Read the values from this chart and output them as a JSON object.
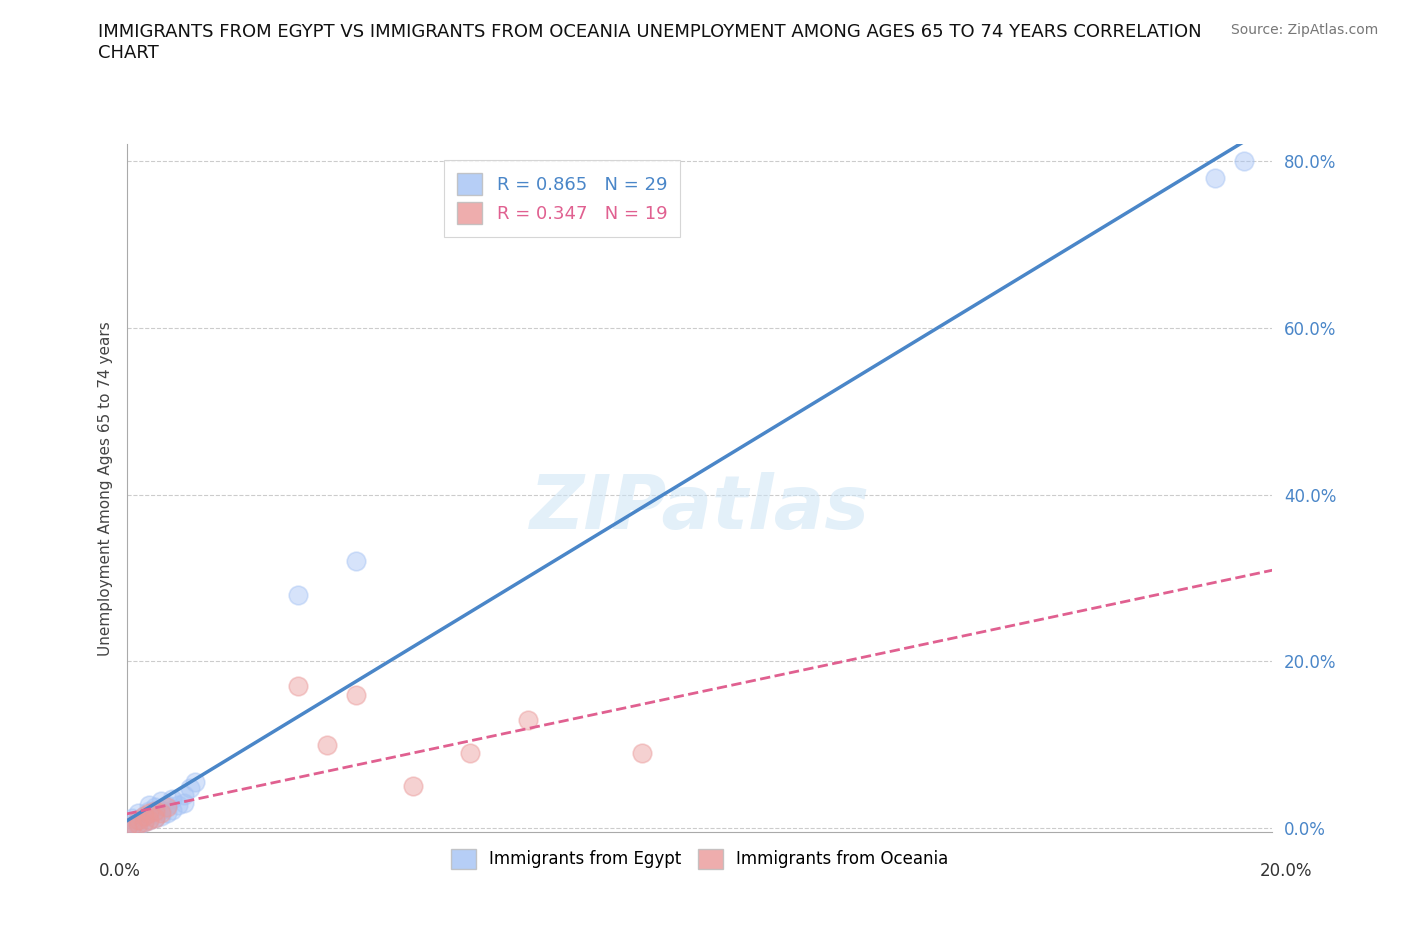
{
  "title": "IMMIGRANTS FROM EGYPT VS IMMIGRANTS FROM OCEANIA UNEMPLOYMENT AMONG AGES 65 TO 74 YEARS CORRELATION\nCHART",
  "ylabel": "Unemployment Among Ages 65 to 74 years",
  "source": "Source: ZipAtlas.com",
  "watermark": "ZIPatlas",
  "egypt_R": 0.865,
  "egypt_N": 29,
  "oceania_R": 0.347,
  "oceania_N": 19,
  "egypt_color": "#a4c2f4",
  "oceania_color": "#ea9999",
  "egypt_line_color": "#4a86c8",
  "oceania_line_color": "#e06090",
  "xlim": [
    0.0,
    0.2
  ],
  "ylim": [
    -0.005,
    0.82
  ],
  "yticks": [
    0.0,
    0.2,
    0.4,
    0.6,
    0.8
  ],
  "ytick_labels": [
    "0.0%",
    "20.0%",
    "40.0%",
    "60.0%",
    "80.0%"
  ],
  "egypt_x": [
    0.0,
    0.001,
    0.001,
    0.002,
    0.002,
    0.002,
    0.003,
    0.003,
    0.004,
    0.004,
    0.004,
    0.005,
    0.005,
    0.006,
    0.006,
    0.006,
    0.007,
    0.007,
    0.008,
    0.008,
    0.009,
    0.01,
    0.01,
    0.011,
    0.012,
    0.03,
    0.04,
    0.19,
    0.195
  ],
  "egypt_y": [
    0.0,
    0.005,
    0.012,
    0.003,
    0.01,
    0.018,
    0.008,
    0.015,
    0.01,
    0.02,
    0.028,
    0.012,
    0.025,
    0.015,
    0.022,
    0.032,
    0.018,
    0.028,
    0.022,
    0.035,
    0.028,
    0.03,
    0.04,
    0.048,
    0.055,
    0.28,
    0.32,
    0.78,
    0.8
  ],
  "oceania_x": [
    0.0,
    0.001,
    0.002,
    0.002,
    0.003,
    0.003,
    0.004,
    0.004,
    0.005,
    0.005,
    0.006,
    0.007,
    0.03,
    0.035,
    0.04,
    0.05,
    0.06,
    0.07,
    0.09
  ],
  "oceania_y": [
    0.0,
    0.003,
    0.005,
    0.01,
    0.008,
    0.015,
    0.01,
    0.018,
    0.012,
    0.02,
    0.018,
    0.025,
    0.17,
    0.1,
    0.16,
    0.05,
    0.09,
    0.13,
    0.09
  ]
}
